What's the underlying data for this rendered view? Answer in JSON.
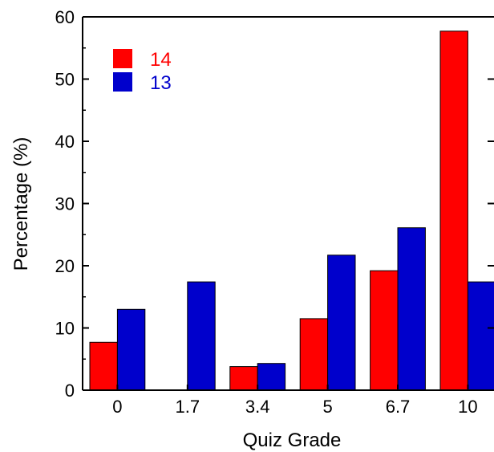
{
  "chart_data": {
    "type": "bar",
    "title": "",
    "xlabel": "Quiz Grade",
    "ylabel": "Percentage (%)",
    "categories": [
      "0",
      "1.7",
      "3.4",
      "5",
      "6.7",
      "10"
    ],
    "ylim": [
      0,
      60
    ],
    "yticks": [
      0,
      10,
      20,
      30,
      40,
      50,
      60
    ],
    "legend_position": "top-left",
    "grid": false,
    "series": [
      {
        "name": "14",
        "color": "#ff0000",
        "values": [
          7.7,
          0,
          3.8,
          11.5,
          19.2,
          57.7
        ]
      },
      {
        "name": "13",
        "color": "#0000cc",
        "values": [
          13.0,
          17.4,
          4.3,
          21.7,
          26.1,
          17.4
        ]
      }
    ]
  }
}
